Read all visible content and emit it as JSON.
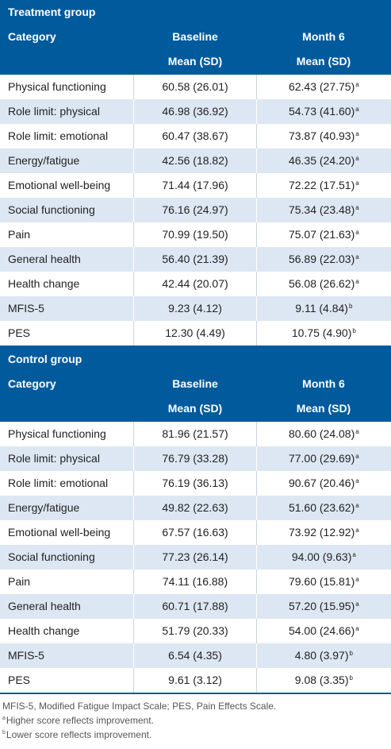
{
  "groups": [
    {
      "title": "Treatment group",
      "headers": {
        "category": "Category",
        "baseline": "Baseline",
        "month6": "Month 6",
        "baseline_sub": "Mean (SD)",
        "month6_sub": "Mean (SD)"
      },
      "rows": [
        {
          "category": "Physical functioning",
          "baseline": "60.58 (26.01)",
          "month6": "62.43 (27.75)",
          "note": "a"
        },
        {
          "category": "Role limit: physical",
          "baseline": "46.98 (36.92)",
          "month6": "54.73 (41.60)",
          "note": "a"
        },
        {
          "category": "Role limit: emotional",
          "baseline": "60.47 (38.67)",
          "month6": "73.87 (40.93)",
          "note": "a"
        },
        {
          "category": "Energy/fatigue",
          "baseline": "42.56 (18.82)",
          "month6": "46.35 (24.20)",
          "note": "a"
        },
        {
          "category": "Emotional well-being",
          "baseline": "71.44 (17.96)",
          "month6": "72.22 (17.51)",
          "note": "a"
        },
        {
          "category": "Social functioning",
          "baseline": "76.16 (24.97)",
          "month6": "75.34 (23.48)",
          "note": "a"
        },
        {
          "category": "Pain",
          "baseline": "70.99 (19.50)",
          "month6": "75.07 (21.63)",
          "note": "a"
        },
        {
          "category": "General health",
          "baseline": "56.40 (21.39)",
          "month6": "56.89 (22.03)",
          "note": "a"
        },
        {
          "category": "Health change",
          "baseline": "42.44 (20.07)",
          "month6": "56.08 (26.62)",
          "note": "a"
        },
        {
          "category": "MFIS-5",
          "baseline": "9.23 (4.12)",
          "month6": "9.11 (4.84)",
          "note": "b"
        },
        {
          "category": "PES",
          "baseline": "12.30 (4.49)",
          "month6": "10.75 (4.90)",
          "note": "b"
        }
      ]
    },
    {
      "title": "Control group",
      "headers": {
        "category": "Category",
        "baseline": "Baseline",
        "month6": "Month 6",
        "baseline_sub": "Mean (SD)",
        "month6_sub": "Mean (SD)"
      },
      "rows": [
        {
          "category": "Physical functioning",
          "baseline": "81.96 (21.57)",
          "month6": "80.60 (24.08)",
          "note": "a"
        },
        {
          "category": "Role limit: physical",
          "baseline": "76.79 (33.28)",
          "month6": "77.00 (29.69)",
          "note": "a"
        },
        {
          "category": "Role limit: emotional",
          "baseline": "76.19 (36.13)",
          "month6": "90.67 (20.46)",
          "note": "a"
        },
        {
          "category": "Energy/fatigue",
          "baseline": "49.82 (22.63)",
          "month6": "51.60 (23.62)",
          "note": "a"
        },
        {
          "category": "Emotional well-being",
          "baseline": "67.57 (16.63)",
          "month6": "73.92 (12.92)",
          "note": "a"
        },
        {
          "category": "Social functioning",
          "baseline": "77.23 (26.14)",
          "month6": "94.00 (9.63)",
          "note": "a"
        },
        {
          "category": "Pain",
          "baseline": "74.11 (16.88)",
          "month6": "79.60 (15.81)",
          "note": "a"
        },
        {
          "category": "General health",
          "baseline": "60.71 (17.88)",
          "month6": "57.20 (15.95)",
          "note": "a"
        },
        {
          "category": "Health change",
          "baseline": "51.79 (20.33)",
          "month6": "54.00 (24.66)",
          "note": "a"
        },
        {
          "category": "MFIS-5",
          "baseline": "6.54 (4.35)",
          "month6": "4.80 (3.97)",
          "note": "b"
        },
        {
          "category": "PES",
          "baseline": "9.61 (3.12)",
          "month6": "9.08 (3.35)",
          "note": "b"
        }
      ]
    }
  ],
  "footnotes": {
    "abbrev": "MFIS-5, Modified Fatigue Impact Scale; PES, Pain Effects Scale.",
    "a_mark": "a",
    "a_text": "Higher score reflects improvement.",
    "b_mark": "b",
    "b_text": "Lower score reflects improvement."
  },
  "colors": {
    "header_bg": "#005a9c",
    "alt_row": "#dde7f3"
  }
}
